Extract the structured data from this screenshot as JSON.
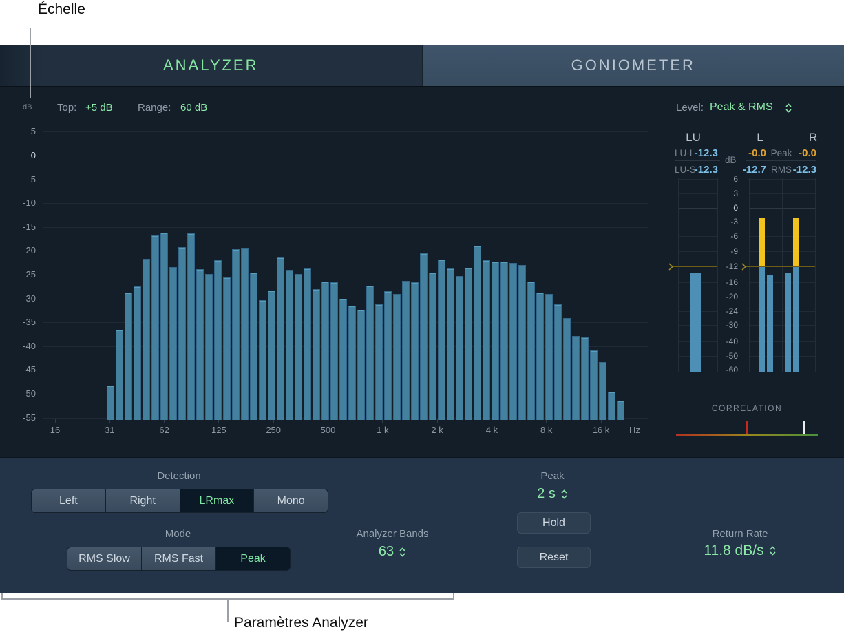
{
  "annotations": {
    "scale_label": "Échelle",
    "params_label": "Paramètres Analyzer"
  },
  "tabs": [
    {
      "label": "ANALYZER",
      "active": true
    },
    {
      "label": "GONIOMETER",
      "active": false
    }
  ],
  "analyzer_header": {
    "unit": "dB",
    "top_label": "Top:",
    "top_value": "+5 dB",
    "range_label": "Range:",
    "range_value": "60 dB"
  },
  "chart_data": {
    "type": "bar",
    "title": "Third-octave spectrum analyzer",
    "xlabel": "Hz",
    "ylabel": "dB",
    "ylim": [
      -55,
      5
    ],
    "grid": true,
    "y_ticks": [
      "5",
      "0",
      "-5",
      "-10",
      "-15",
      "-20",
      "-25",
      "-30",
      "-35",
      "-40",
      "-45",
      "-50",
      "-55"
    ],
    "x_ticks": [
      "16",
      "31",
      "62",
      "125",
      "250",
      "500",
      "1 k",
      "2 k",
      "4 k",
      "8 k",
      "16 k"
    ],
    "x_unit": "Hz",
    "start_freq_hz": 31,
    "values_db": [
      -48.3,
      -36.6,
      -28.8,
      -27.5,
      -21.7,
      -16.8,
      -16.2,
      -23.4,
      -19.2,
      -16.3,
      -23.8,
      -24.9,
      -22.0,
      -25.6,
      -19.6,
      -19.4,
      -24.6,
      -30.4,
      -28.3,
      -21.4,
      -24.0,
      -24.9,
      -23.7,
      -28.1,
      -26.5,
      -26.6,
      -30.1,
      -31.5,
      -32.3,
      -27.3,
      -31.2,
      -28.5,
      -29.1,
      -26.3,
      -26.6,
      -20.5,
      -24.5,
      -21.8,
      -23.7,
      -25.3,
      -23.5,
      -18.9,
      -22.0,
      -22.3,
      -22.2,
      -22.5,
      -23.0,
      -26.5,
      -28.8,
      -29.0,
      -31.2,
      -34.1,
      -37.9,
      -38.1,
      -40.9,
      -43.3,
      -49.5,
      -51.5
    ]
  },
  "meters": {
    "level_label": "Level:",
    "level_value": "Peak & RMS",
    "lu_header": "LU",
    "l_header": "L",
    "r_header": "R",
    "unit": "dB",
    "lu_i_label": "LU-I",
    "lu_i_value": "-12.3",
    "lu_s_label": "LU-S",
    "lu_s_value": "-12.3",
    "peak_label": "Peak",
    "rms_label": "RMS",
    "l_peak_value": "-0.0",
    "r_peak_value": "-0.0",
    "l_rms_value": "-12.7",
    "r_rms_value": "-12.3",
    "scale_ticks": [
      "6",
      "3",
      "0",
      "-3",
      "-6",
      "-9",
      "-12",
      "-16",
      "-20",
      "-24",
      "-30",
      "-40",
      "-50",
      "-60"
    ],
    "reference_db": -12,
    "lu_bar_db": -13.5,
    "l_peak_bar_db": -2.1,
    "l_rms_bar_db": -14.0,
    "r_rms_bar_db": -13.6,
    "r_peak_bar_db": -2.1
  },
  "correlation": {
    "label": "CORRELATION",
    "range": [
      -1,
      1
    ],
    "value": 0.8
  },
  "controls": {
    "detection": {
      "label": "Detection",
      "options": [
        "Left",
        "Right",
        "LRmax",
        "Mono"
      ],
      "selected": "LRmax"
    },
    "mode": {
      "label": "Mode",
      "options": [
        "RMS Slow",
        "RMS Fast",
        "Peak"
      ],
      "selected": "Peak"
    },
    "analyzer_bands": {
      "label": "Analyzer Bands",
      "value": "63"
    },
    "peak_hold": {
      "label": "Peak",
      "value": "2 s"
    },
    "hold_button": "Hold",
    "reset_button": "Reset",
    "return_rate": {
      "label": "Return Rate",
      "value": "11.8 dB/s"
    }
  },
  "colors": {
    "accent_green": "#8ce9a7",
    "bar_blue": "#44819f",
    "meter_blue": "#4d8fb5",
    "meter_yellow": "#f2c21d",
    "value_cyan": "#7cc0e8",
    "value_orange": "#dfa231"
  }
}
